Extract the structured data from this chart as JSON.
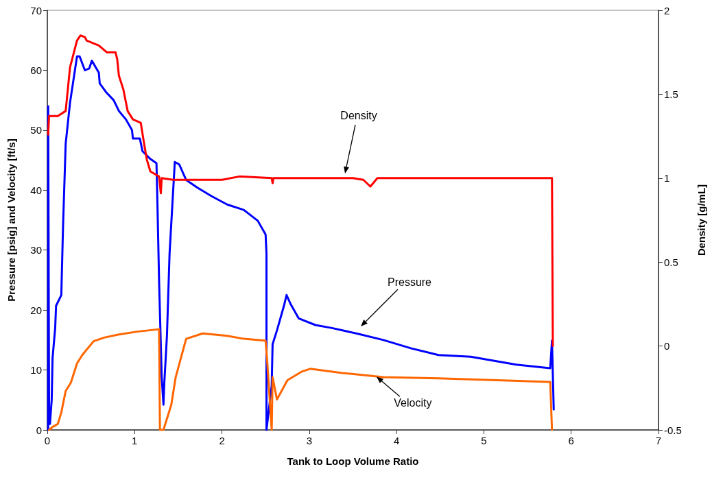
{
  "chart_data": {
    "type": "line",
    "xlabel": "Tank to Loop Volume Ratio",
    "ylabel": "Pressure [psig] and Velocity [ft/s]",
    "y2label": "Density [g/mL]",
    "xlim": [
      0,
      7
    ],
    "xticks": [
      0,
      1,
      2,
      3,
      4,
      5,
      6,
      7
    ],
    "ylim": [
      0,
      70
    ],
    "yticks": [
      0,
      10,
      20,
      30,
      40,
      50,
      60,
      70
    ],
    "y2lim": [
      -0.5,
      2
    ],
    "y2ticks": [
      -0.5,
      0,
      0.5,
      1,
      1.5,
      2
    ],
    "series": [
      {
        "color": "#0000ff",
        "x": [
          0.01,
          0.01,
          0.02,
          0.03,
          0.05,
          0.06,
          0.09,
          0.1,
          0.16,
          0.18,
          0.21,
          0.26,
          0.34,
          0.37,
          0.43,
          0.48,
          0.51,
          0.59,
          0.6,
          0.67,
          0.76,
          0.82,
          0.9,
          0.97,
          0.98,
          1.06,
          1.09,
          1.18,
          1.25,
          1.26,
          1.28,
          1.31,
          1.33,
          1.34,
          1.37,
          1.4,
          1.46,
          1.51,
          1.59,
          1.72,
          1.88,
          2.06,
          2.25,
          2.41,
          2.5,
          2.51,
          2.51,
          2.57,
          2.58,
          2.63,
          2.71,
          2.74,
          2.79,
          2.88,
          3.07,
          3.26,
          3.54,
          3.85,
          4.17,
          4.48,
          4.85,
          5.37,
          5.76,
          5.78,
          5.8
        ],
        "values": [
          0,
          54,
          3,
          1,
          5,
          12,
          17,
          20.7,
          22.5,
          34,
          47.7,
          54.6,
          62.3,
          62.3,
          60,
          60.3,
          61.6,
          59.6,
          57.8,
          56.4,
          55,
          53.2,
          51.8,
          50,
          48.6,
          48.6,
          46.5,
          45.2,
          44.5,
          38.5,
          24.8,
          8.8,
          4.2,
          7.9,
          15.7,
          29.4,
          44.7,
          44.3,
          41.7,
          40.4,
          39,
          37.6,
          36.7,
          34.9,
          32.6,
          29.4,
          0,
          7.4,
          14.3,
          16.6,
          20.7,
          22.5,
          20.9,
          18.6,
          17.5,
          17,
          16.1,
          15,
          13.6,
          12.5,
          12.2,
          10.9,
          10.3,
          14.9,
          3.4
        ]
      },
      {
        "color": "#ff0000",
        "axis": "y2",
        "x": [
          0.01,
          0.02,
          0.12,
          0.21,
          0.26,
          0.34,
          0.38,
          0.43,
          0.45,
          0.59,
          0.68,
          0.78,
          0.8,
          0.82,
          0.87,
          0.92,
          0.98,
          1.07,
          1.11,
          1.14,
          1.18,
          1.28,
          1.3,
          1.31,
          1.44,
          2.0,
          2.2,
          2.57,
          2.58,
          2.59,
          3.5,
          3.62,
          3.7,
          3.78,
          5.78,
          5.79
        ],
        "values": [
          1.26,
          1.37,
          1.37,
          1.4,
          1.66,
          1.82,
          1.85,
          1.84,
          1.82,
          1.79,
          1.75,
          1.75,
          1.71,
          1.61,
          1.53,
          1.4,
          1.35,
          1.33,
          1.2,
          1.11,
          1.04,
          1.01,
          0.91,
          1.0,
          0.99,
          0.99,
          1.01,
          1.0,
          0.97,
          1.0,
          1.0,
          0.99,
          0.95,
          1.0,
          1.0,
          0.0
        ]
      },
      {
        "color": "#ff6600",
        "x": [
          0.02,
          0.06,
          0.12,
          0.16,
          0.21,
          0.27,
          0.34,
          0.4,
          0.53,
          0.65,
          0.81,
          1.03,
          1.28,
          1.29,
          1.33,
          1.42,
          1.47,
          1.59,
          1.78,
          2.06,
          2.25,
          2.5,
          2.52,
          2.57,
          2.58,
          2.63,
          2.75,
          2.91,
          3.01,
          3.38,
          3.85,
          4.48,
          5.76,
          5.78
        ],
        "values": [
          0,
          0.5,
          1,
          2.9,
          6.5,
          7.9,
          11.1,
          12.5,
          14.8,
          15.4,
          15.9,
          16.4,
          16.8,
          0,
          0,
          4.2,
          8.8,
          15.2,
          16.1,
          15.7,
          15.2,
          14.9,
          11.1,
          0,
          8.8,
          5.1,
          8.3,
          9.7,
          10.2,
          9.5,
          8.8,
          8.6,
          8.0,
          0
        ]
      }
    ],
    "annotations": [
      "Density",
      "Pressure",
      {
        "text": "Velocity",
        "x": 3.77,
        "y": 8.9
      }
    ]
  }
}
